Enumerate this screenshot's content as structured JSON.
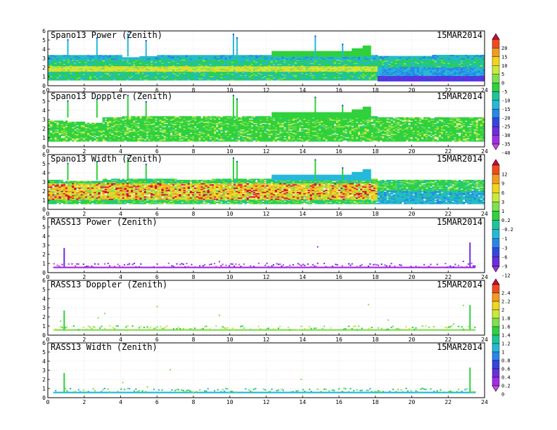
{
  "chart_data": {
    "type": "heatmap",
    "x_ticks": [
      0,
      2,
      4,
      6,
      8,
      10,
      12,
      14,
      16,
      18,
      20,
      22,
      24
    ],
    "y_ticks": [
      0,
      1,
      2,
      3,
      4,
      5,
      6
    ],
    "xlim": [
      0,
      24
    ],
    "ylim": [
      0,
      6
    ],
    "grid": true,
    "panels": [
      {
        "title": "Spano13 Power (Zenith)",
        "date": "15MAR2014",
        "kind": "spano_power",
        "colorbar": "A",
        "top_y": [
          3.3,
          3.3,
          3.3,
          3.3,
          3.1,
          3.2,
          3.3,
          3.3,
          3.3,
          3.3,
          3.3,
          3.3,
          3.3,
          3.3,
          3.3,
          3.3,
          3.3,
          3.3,
          3.2,
          3.2,
          3.2,
          3.3,
          3.3,
          3.3
        ],
        "core_y": 1.8,
        "core_value": 2,
        "spikes": [
          [
            1.1,
            5.1
          ],
          [
            2.7,
            5.3
          ],
          [
            4.4,
            5.7
          ],
          [
            5.4,
            5.0
          ],
          [
            10.2,
            5.7
          ],
          [
            10.4,
            5.3
          ],
          [
            14.7,
            5.5
          ],
          [
            16.2,
            4.6
          ]
        ],
        "blocks": [
          [
            12.3,
            3.9,
            16.7,
            3.8
          ],
          [
            16.7,
            17.2,
            4.1
          ],
          [
            17.3,
            17.7,
            4.3
          ]
        ]
      },
      {
        "title": "Spano13 Doppler (Zenith)",
        "date": "15MAR2014",
        "kind": "spano_doppler",
        "colorbar": "A",
        "top_y": [
          2.8,
          2.7,
          2.6,
          3.2,
          3.3,
          3.3,
          3.3,
          3.3,
          3.3,
          3.3,
          3.3,
          3.3,
          3.3,
          3.3,
          3.3,
          3.3,
          3.3,
          3.3,
          3.2,
          3.2,
          3.2,
          3.2,
          3.2,
          3.2
        ],
        "spikes": [
          [
            1.1,
            5.1
          ],
          [
            2.7,
            5.3
          ],
          [
            4.4,
            5.7
          ],
          [
            5.4,
            5.0
          ],
          [
            10.2,
            5.7
          ],
          [
            10.4,
            5.3
          ],
          [
            14.7,
            5.5
          ],
          [
            16.2,
            4.6
          ]
        ],
        "blocks": [
          [
            12.3,
            3.9,
            16.7,
            3.8
          ],
          [
            16.7,
            17.2,
            4.1
          ],
          [
            17.3,
            17.7,
            4.3
          ]
        ]
      },
      {
        "title": "Spano13 Width (Zenith)",
        "date": "15MAR2014",
        "kind": "spano_width",
        "colorbar": "B",
        "top_y": [
          3.2,
          3.1,
          3.1,
          3.3,
          3.3,
          3.3,
          3.3,
          3.2,
          3.2,
          3.3,
          3.3,
          3.3,
          3.3,
          3.3,
          3.3,
          3.3,
          3.3,
          3.3,
          3.2,
          3.2,
          3.2,
          3.2,
          3.2,
          3.2
        ],
        "spikes": [
          [
            1.1,
            5.1
          ],
          [
            2.7,
            5.3
          ],
          [
            4.4,
            5.7
          ],
          [
            5.4,
            5.0
          ],
          [
            10.2,
            5.7
          ],
          [
            10.4,
            5.3
          ],
          [
            14.7,
            5.5
          ],
          [
            16.2,
            4.6
          ]
        ],
        "blocks": [
          [
            12.3,
            3.9,
            16.7,
            3.8
          ],
          [
            16.7,
            17.2,
            4.1
          ],
          [
            17.3,
            17.7,
            4.3
          ]
        ]
      },
      {
        "title": "RASS13 Power (Zenith)",
        "date": "15MAR2014",
        "kind": "rass_power",
        "colorbar": "B",
        "spikes": [
          [
            0.9,
            2.7
          ],
          [
            23.2,
            3.3
          ]
        ]
      },
      {
        "title": "RASS13 Doppler (Zenith)",
        "date": "15MAR2014",
        "kind": "rass_doppler",
        "colorbar": "C",
        "spikes": [
          [
            0.9,
            2.7
          ],
          [
            23.2,
            3.3
          ]
        ]
      },
      {
        "title": "RASS13 Width (Zenith)",
        "date": "15MAR2014",
        "kind": "rass_width",
        "colorbar": "C",
        "spikes": [
          [
            0.9,
            2.7
          ],
          [
            23.2,
            3.3
          ]
        ]
      }
    ],
    "colorbars": [
      {
        "id": "A",
        "labels": [
          "20",
          "15",
          "10",
          "5",
          "0",
          "-5",
          "-10",
          "-15",
          "-20",
          "-25",
          "-30",
          "-35",
          "-40"
        ],
        "colors": [
          "#d8003a",
          "#f04a20",
          "#f39a20",
          "#f1d41e",
          "#c9ea3a",
          "#7fe050",
          "#2fd13c",
          "#1ec49a",
          "#26b8d8",
          "#2a86e8",
          "#3346e0",
          "#6a2ee0",
          "#a12ee6",
          "#c84ae8"
        ]
      },
      {
        "id": "B",
        "labels": [
          "12",
          "9",
          "6",
          "3",
          "1",
          "0.2",
          "-0.2",
          "-1",
          "-3",
          "-6",
          "-9",
          "-12"
        ],
        "colors": [
          "#d8003a",
          "#f04a20",
          "#f39a20",
          "#f1d41e",
          "#c9ea3a",
          "#7fe050",
          "#2fd13c",
          "#1ec49a",
          "#26b8d8",
          "#2a86e8",
          "#3346e0",
          "#6a2ee0",
          "#a12ee6"
        ]
      },
      {
        "id": "C",
        "labels": [
          "2.4",
          "2.2",
          "2",
          "1.8",
          "1.6",
          "1.4",
          "1.2",
          "1",
          "0.8",
          "0.6",
          "0.4",
          "0.2",
          "0"
        ],
        "colors": [
          "#d8003a",
          "#f04a20",
          "#f39a20",
          "#f1d41e",
          "#c9ea3a",
          "#7fe050",
          "#2fd13c",
          "#1ec49a",
          "#26b8d8",
          "#2a86e8",
          "#3346e0",
          "#6a2ee0",
          "#a12ee6",
          "#c84ae8"
        ]
      }
    ]
  }
}
